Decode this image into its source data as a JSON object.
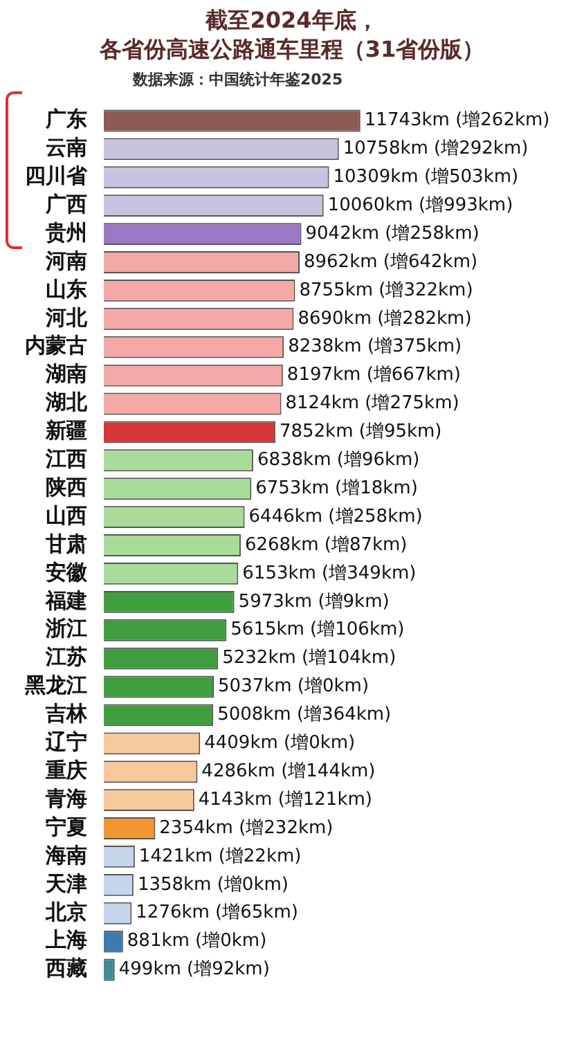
{
  "chart_data": {
    "type": "bar",
    "orientation": "horizontal",
    "title": "截至2024年底，",
    "subtitle": "各省份高速公路通车里程（31省份版）",
    "annotations": [
      "数据来源：中国统计年鉴2025"
    ],
    "categories": [
      "广东",
      "云南",
      "四川省",
      "广西",
      "贵州",
      "河南",
      "山东",
      "河北",
      "内蒙古",
      "湖南",
      "湖北",
      "新疆",
      "江西",
      "陕西",
      "山西",
      "甘肃",
      "安徽",
      "福建",
      "浙江",
      "江苏",
      "黑龙江",
      "吉林",
      "辽宁",
      "重庆",
      "青海",
      "宁夏",
      "海南",
      "天津",
      "北京",
      "上海",
      "西藏"
    ],
    "values": [
      11743,
      10758,
      10309,
      10060,
      9042,
      8962,
      8755,
      8690,
      8238,
      8197,
      8124,
      7852,
      6838,
      6753,
      6446,
      6268,
      6153,
      5973,
      5615,
      5232,
      5037,
      5008,
      4409,
      4286,
      4143,
      2354,
      1421,
      1358,
      1276,
      881,
      499
    ],
    "value_labels": [
      "11743km (增262km)",
      "10758km (增292km)",
      "10309km (增503km)",
      "10060km (增993km)",
      "9042km (增258km)",
      "8962km (增642km)",
      "8755km (增322km)",
      "8690km (增282km)",
      "8238km (增375km)",
      "8197km (增667km)",
      "8124km (增275km)",
      "7852km (增95km)",
      "6838km (增96km)",
      "6753km (增18km)",
      "6446km (增258km)",
      "6268km (增87km)",
      "6153km (增349km)",
      "5973km (增9km)",
      "5615km (增106km)",
      "5232km (增104km)",
      "5037km (增0km)",
      "5008km (增364km)",
      "4409km (增0km)",
      "4286km (增144km)",
      "4143km (增121km)",
      "2354km (增232km)",
      "1421km (增22km)",
      "1358km (增0km)",
      "1276km (增65km)",
      "881km (增0km)",
      "499km (增92km)"
    ],
    "colors": [
      "#8e5b52",
      "#c8c3de",
      "#c8c3de",
      "#c8c3de",
      "#9b78c6",
      "#f4a9a6",
      "#f4a9a6",
      "#f4a9a6",
      "#f4a9a6",
      "#f4a9a6",
      "#f4a9a6",
      "#d63636",
      "#a9dc9a",
      "#a9dc9a",
      "#a9dc9a",
      "#a9dc9a",
      "#a9dc9a",
      "#3f9f3f",
      "#3f9f3f",
      "#3f9f3f",
      "#3f9f3f",
      "#3f9f3f",
      "#f8c99c",
      "#f8c99c",
      "#f8c99c",
      "#f39531",
      "#c5d5ec",
      "#c5d5ec",
      "#c5d5ec",
      "#3b7bb0",
      "#3e8c9c"
    ],
    "legend": false
  }
}
